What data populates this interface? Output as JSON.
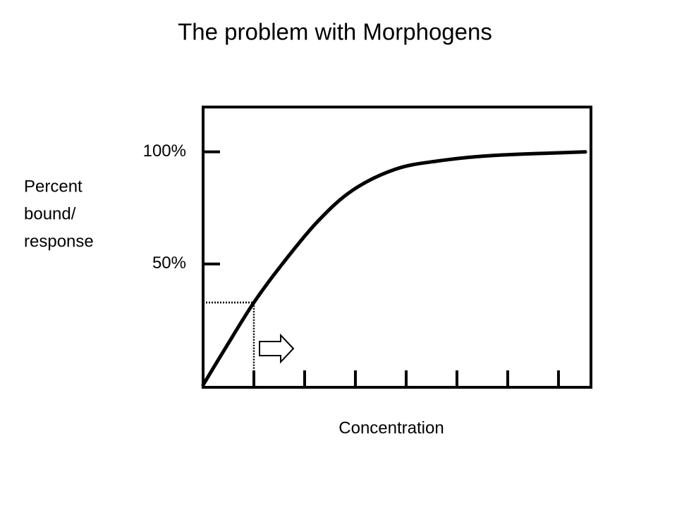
{
  "chart_data": {
    "type": "line",
    "title": "The problem with Morphogens",
    "xlabel": "Concentration",
    "ylabel": [
      "Percent",
      "bound/",
      "response"
    ],
    "x": [
      0,
      0.44,
      1,
      1.56,
      2.25,
      2.94,
      3.78,
      4.61,
      5.72,
      7.53
    ],
    "series": [
      {
        "color": "#000000",
        "values": [
          -4,
          12.5,
          32.8,
          50,
          68.8,
          82.8,
          92.2,
          95.9,
          98.4,
          100
        ]
      }
    ],
    "xlim": [
      0,
      7.64
    ],
    "ylim": [
      -5,
      120
    ],
    "xticks": [
      1,
      2,
      3,
      4,
      5,
      6,
      7
    ],
    "yticks": [
      {
        "value": 50,
        "label": "50%"
      },
      {
        "value": 100,
        "label": "100%"
      }
    ],
    "guide": {
      "x": 1,
      "y": 32.8
    }
  }
}
